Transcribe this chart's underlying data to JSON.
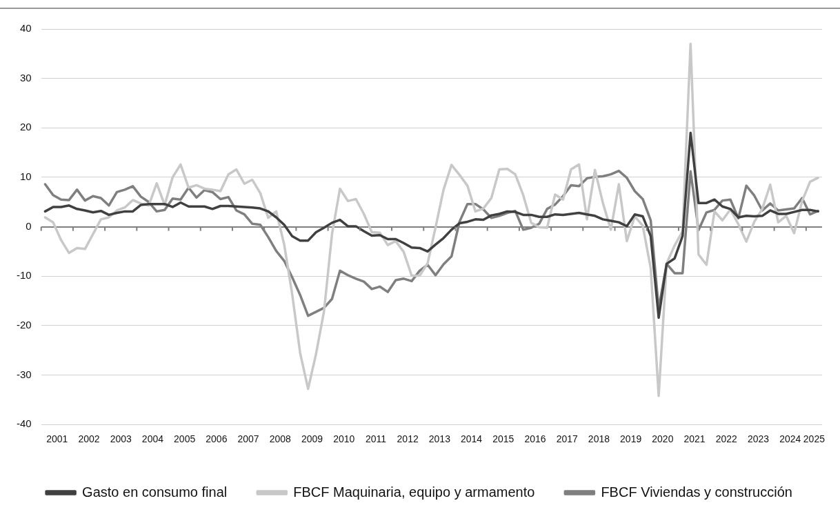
{
  "chart_data": {
    "type": "line",
    "x": [
      2001.125,
      2001.375,
      2001.625,
      2001.875,
      2002.125,
      2002.375,
      2002.625,
      2002.875,
      2003.125,
      2003.375,
      2003.625,
      2003.875,
      2004.125,
      2004.375,
      2004.625,
      2004.875,
      2005.125,
      2005.375,
      2005.625,
      2005.875,
      2006.125,
      2006.375,
      2006.625,
      2006.875,
      2007.125,
      2007.375,
      2007.625,
      2007.875,
      2008.125,
      2008.375,
      2008.625,
      2008.875,
      2009.125,
      2009.375,
      2009.625,
      2009.875,
      2010.125,
      2010.375,
      2010.625,
      2010.875,
      2011.125,
      2011.375,
      2011.625,
      2011.875,
      2012.125,
      2012.375,
      2012.625,
      2012.875,
      2013.125,
      2013.375,
      2013.625,
      2013.875,
      2014.125,
      2014.375,
      2014.625,
      2014.875,
      2015.125,
      2015.375,
      2015.625,
      2015.875,
      2016.125,
      2016.375,
      2016.625,
      2016.875,
      2017.125,
      2017.375,
      2017.625,
      2017.875,
      2018.125,
      2018.375,
      2018.625,
      2018.875,
      2019.125,
      2019.375,
      2019.625,
      2019.875,
      2020.125,
      2020.375,
      2020.625,
      2020.875,
      2021.125,
      2021.375,
      2021.625,
      2021.875,
      2022.125,
      2022.375,
      2022.625,
      2022.875,
      2023.125,
      2023.375,
      2023.625,
      2023.875,
      2024.125,
      2024.375,
      2024.625,
      2024.875,
      2025.125,
      2025.375
    ],
    "xlim": [
      2001,
      2025.5
    ],
    "xticks": [
      {
        "value": 2001,
        "label": null
      },
      {
        "value": 2001.5,
        "label": "2001"
      },
      {
        "value": 2002,
        "label": null
      },
      {
        "value": 2002.5,
        "label": "2002"
      },
      {
        "value": 2003,
        "label": null
      },
      {
        "value": 2003.5,
        "label": "2003"
      },
      {
        "value": 2004,
        "label": null
      },
      {
        "value": 2004.5,
        "label": "2004"
      },
      {
        "value": 2005,
        "label": null
      },
      {
        "value": 2005.5,
        "label": "2005"
      },
      {
        "value": 2006,
        "label": null
      },
      {
        "value": 2006.5,
        "label": "2006"
      },
      {
        "value": 2007,
        "label": null
      },
      {
        "value": 2007.5,
        "label": "2007"
      },
      {
        "value": 2008,
        "label": null
      },
      {
        "value": 2008.5,
        "label": "2008"
      },
      {
        "value": 2009,
        "label": null
      },
      {
        "value": 2009.5,
        "label": "2009"
      },
      {
        "value": 2010,
        "label": null
      },
      {
        "value": 2010.5,
        "label": "2010"
      },
      {
        "value": 2011,
        "label": null
      },
      {
        "value": 2011.5,
        "label": "2011"
      },
      {
        "value": 2012,
        "label": null
      },
      {
        "value": 2012.5,
        "label": "2012"
      },
      {
        "value": 2013,
        "label": null
      },
      {
        "value": 2013.5,
        "label": "2013"
      },
      {
        "value": 2014,
        "label": null
      },
      {
        "value": 2014.5,
        "label": "2014"
      },
      {
        "value": 2015,
        "label": null
      },
      {
        "value": 2015.5,
        "label": "2015"
      },
      {
        "value": 2016,
        "label": null
      },
      {
        "value": 2016.5,
        "label": "2016"
      },
      {
        "value": 2017,
        "label": null
      },
      {
        "value": 2017.5,
        "label": "2017"
      },
      {
        "value": 2018,
        "label": null
      },
      {
        "value": 2018.5,
        "label": "2018"
      },
      {
        "value": 2019,
        "label": null
      },
      {
        "value": 2019.5,
        "label": "2019"
      },
      {
        "value": 2020,
        "label": null
      },
      {
        "value": 2020.5,
        "label": "2020"
      },
      {
        "value": 2021,
        "label": null
      },
      {
        "value": 2021.5,
        "label": "2021"
      },
      {
        "value": 2022,
        "label": null
      },
      {
        "value": 2022.5,
        "label": "2022"
      },
      {
        "value": 2023,
        "label": null
      },
      {
        "value": 2023.5,
        "label": "2023"
      },
      {
        "value": 2024,
        "label": null
      },
      {
        "value": 2024.5,
        "label": "2024"
      },
      {
        "value": 2025,
        "label": null
      },
      {
        "value": 2025.25,
        "label": "2025"
      }
    ],
    "ylim": [
      -40,
      40
    ],
    "yticks": [
      -40,
      -30,
      -20,
      -10,
      0,
      10,
      20,
      30,
      40
    ],
    "grid": "y",
    "legend": "bottom",
    "marker": "none",
    "line_style": "solid",
    "series": [
      {
        "name": "Gasto en consumo final",
        "color": "#404040",
        "values": [
          3.1,
          4.0,
          4.0,
          4.3,
          3.6,
          3.3,
          2.9,
          3.2,
          2.4,
          2.8,
          3.1,
          3.1,
          4.4,
          4.6,
          4.6,
          4.6,
          4.0,
          4.9,
          4.1,
          4.1,
          4.1,
          3.6,
          4.2,
          4.2,
          4.1,
          4.0,
          3.9,
          3.7,
          3.1,
          1.9,
          0.4,
          -1.9,
          -2.8,
          -2.8,
          -1.1,
          -0.2,
          0.8,
          1.4,
          0.1,
          0.1,
          -0.9,
          -1.8,
          -1.7,
          -2.5,
          -2.5,
          -3.3,
          -4.2,
          -4.3,
          -5.0,
          -3.6,
          -2.3,
          -0.6,
          0.7,
          1.0,
          1.5,
          1.4,
          2.3,
          2.6,
          3.1,
          3.0,
          2.4,
          2.4,
          2.0,
          2.0,
          2.5,
          2.4,
          2.6,
          2.8,
          2.5,
          2.2,
          1.5,
          1.2,
          0.9,
          0.1,
          2.5,
          2.1,
          -1.9,
          -18.4,
          -7.5,
          -6.4,
          -1.9,
          19.0,
          4.8,
          4.8,
          5.5,
          4.1,
          3.6,
          1.9,
          2.2,
          2.1,
          2.2,
          3.3,
          2.6,
          2.6,
          3.0,
          3.4,
          3.4,
          3.1
        ]
      },
      {
        "name": "FBCF Maquinaria, equipo y armamento",
        "color": "#c8c8c8",
        "values": [
          1.9,
          0.9,
          -2.7,
          -5.3,
          -4.3,
          -4.5,
          -1.5,
          1.5,
          1.9,
          3.3,
          3.9,
          5.4,
          4.7,
          4.3,
          8.8,
          4.4,
          10.0,
          12.6,
          7.9,
          8.4,
          7.7,
          7.5,
          7.2,
          10.6,
          11.6,
          8.7,
          9.5,
          6.8,
          1.8,
          3.1,
          -3.6,
          -13.6,
          -25.5,
          -32.8,
          -25.7,
          -17.1,
          -1.5,
          7.7,
          5.2,
          5.6,
          2.6,
          -1.1,
          -1.2,
          -3.7,
          -2.9,
          -5.1,
          -9.9,
          -9.9,
          -7.4,
          -0.1,
          7.5,
          12.5,
          10.5,
          8.3,
          3.1,
          3.7,
          5.8,
          11.6,
          11.7,
          10.6,
          6.4,
          0.8,
          -0.1,
          -0.2,
          6.5,
          5.5,
          11.6,
          12.6,
          1.5,
          11.5,
          4.8,
          -0.6,
          8.6,
          -2.9,
          2.1,
          0.2,
          -8.4,
          -34.2,
          -7.4,
          -3.8,
          -0.9,
          37.0,
          -5.6,
          -7.7,
          3.1,
          1.3,
          3.5,
          0.5,
          -3.0,
          1.0,
          3.6,
          8.5,
          0.9,
          2.2,
          -1.3,
          5.2,
          9.1,
          9.9
        ]
      },
      {
        "name": "FBCF Viviendas y construcción",
        "color": "#7f7f7f",
        "values": [
          8.6,
          6.4,
          5.5,
          5.4,
          7.5,
          5.3,
          6.2,
          5.8,
          4.3,
          7.0,
          7.5,
          8.2,
          6.1,
          5.0,
          3.1,
          3.4,
          5.7,
          5.5,
          7.9,
          5.9,
          7.4,
          7.0,
          5.6,
          6.0,
          3.3,
          2.5,
          0.6,
          0.4,
          -2.1,
          -4.9,
          -6.9,
          -10.2,
          -13.8,
          -18.0,
          -17.2,
          -16.4,
          -14.6,
          -8.9,
          -9.8,
          -10.5,
          -11.1,
          -12.6,
          -12.1,
          -13.2,
          -10.8,
          -10.5,
          -11.0,
          -8.9,
          -7.7,
          -9.8,
          -7.6,
          -6.0,
          1.0,
          4.6,
          4.6,
          3.5,
          1.8,
          2.2,
          2.8,
          3.2,
          -0.6,
          -0.2,
          0.6,
          3.6,
          4.5,
          6.2,
          8.4,
          8.2,
          9.8,
          10.1,
          10.2,
          10.6,
          11.3,
          9.9,
          7.2,
          5.6,
          1.3,
          -16.5,
          -7.5,
          -9.4,
          -9.4,
          11.2,
          -0.7,
          2.9,
          3.4,
          5.3,
          5.5,
          1.7,
          8.3,
          6.3,
          3.3,
          4.7,
          3.3,
          3.5,
          3.7,
          5.8,
          2.5,
          3.2
        ]
      }
    ]
  }
}
